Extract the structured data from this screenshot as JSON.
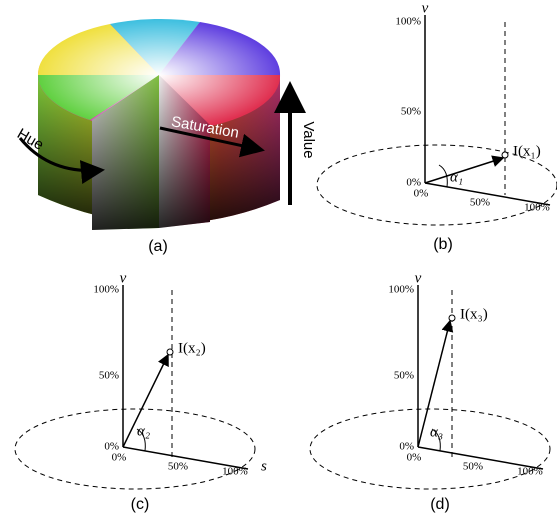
{
  "panel_a": {
    "caption": "(a)",
    "hue": "Hue",
    "saturation": "Saturation",
    "value": "Value"
  },
  "plots": [
    {
      "caption": "(b)",
      "v_label": "v",
      "v_ticks": [
        "100%",
        "50%",
        "0%"
      ],
      "s_ticks": [
        "0%",
        "50%",
        "100%"
      ],
      "point": "I(x₁)",
      "angle": "α₁"
    },
    {
      "caption": "(c)",
      "v_label": "v",
      "s_label": "s",
      "v_ticks": [
        "100%",
        "50%",
        "0%"
      ],
      "s_ticks": [
        "0%",
        "50%",
        "100%"
      ],
      "point": "I(x₂)",
      "angle": "α₂"
    },
    {
      "caption": "(d)",
      "v_label": "v",
      "v_ticks": [
        "100%",
        "50%",
        "0%"
      ],
      "s_ticks": [
        "0%",
        "50%",
        "100%"
      ],
      "point": "I(x₃)",
      "angle": "α₃"
    }
  ]
}
